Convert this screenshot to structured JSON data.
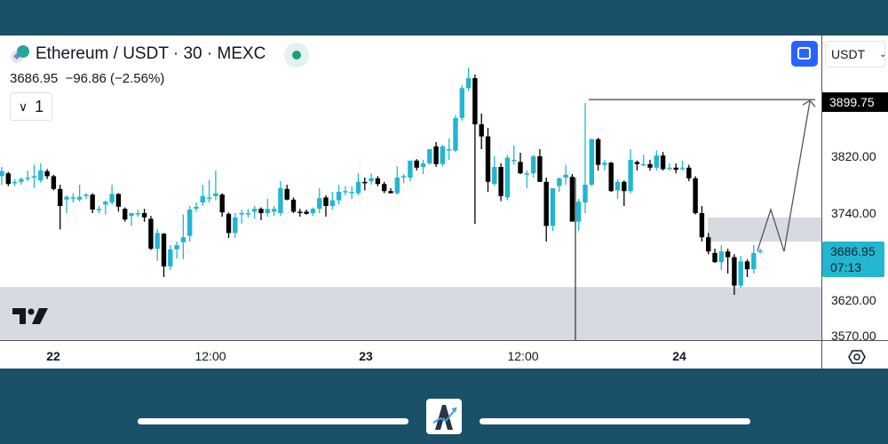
{
  "header": {
    "symbol_title": "Ethereum / USDT · 30 · MEXC",
    "last_price": "3686.95",
    "change": "−96.86 (−2.56%)",
    "collapse_count": "1",
    "market_status": "open"
  },
  "toolbar": {
    "currency": "USDT",
    "fullscreen_icon": "fullscreen-icon",
    "settings_icon": "gear-icon"
  },
  "price_axis": {
    "labels": [
      "3820.00",
      "3740.00",
      "3620.00",
      "3570.00"
    ],
    "target_tag": "3899.75",
    "current_tag": {
      "price": "3686.95",
      "countdown": "07:13"
    }
  },
  "time_axis": {
    "labels": [
      {
        "text": "22",
        "bold": true
      },
      {
        "text": "12:00",
        "bold": false
      },
      {
        "text": "23",
        "bold": true
      },
      {
        "text": "12:00",
        "bold": false
      },
      {
        "text": "24",
        "bold": true
      }
    ]
  },
  "colors": {
    "up": "#22b6d0",
    "down": "#000000",
    "zone": "#d1d4dc",
    "accent": "#2962ff",
    "background": "#1b5069"
  },
  "chart_data": {
    "type": "candlestick",
    "interval": "30",
    "ylim": [
      3560,
      3960
    ],
    "candles_ohlc": [
      [
        3792,
        3805,
        3780,
        3799
      ],
      [
        3796,
        3798,
        3778,
        3781
      ],
      [
        3782,
        3788,
        3778,
        3784
      ],
      [
        3784,
        3790,
        3780,
        3788
      ],
      [
        3789,
        3800,
        3785,
        3790
      ],
      [
        3790,
        3808,
        3775,
        3792
      ],
      [
        3786,
        3810,
        3783,
        3800
      ],
      [
        3799,
        3802,
        3788,
        3792
      ],
      [
        3792,
        3794,
        3772,
        3774
      ],
      [
        3774,
        3780,
        3717,
        3750
      ],
      [
        3759,
        3765,
        3740,
        3763
      ],
      [
        3761,
        3768,
        3755,
        3762
      ],
      [
        3759,
        3780,
        3756,
        3763
      ],
      [
        3765,
        3768,
        3760,
        3766
      ],
      [
        3766,
        3768,
        3740,
        3745
      ],
      [
        3745,
        3750,
        3740,
        3746
      ],
      [
        3752,
        3758,
        3738,
        3756
      ],
      [
        3755,
        3780,
        3752,
        3767
      ],
      [
        3767,
        3768,
        3742,
        3749
      ],
      [
        3746,
        3748,
        3728,
        3731
      ],
      [
        3736,
        3740,
        3722,
        3740
      ],
      [
        3740,
        3745,
        3735,
        3740
      ],
      [
        3740,
        3746,
        3728,
        3734
      ],
      [
        3732,
        3736,
        3688,
        3690
      ],
      [
        3690,
        3718,
        3673,
        3712
      ],
      [
        3711,
        3712,
        3650,
        3665
      ],
      [
        3665,
        3695,
        3660,
        3689
      ],
      [
        3689,
        3700,
        3676,
        3695
      ],
      [
        3699,
        3738,
        3675,
        3706
      ],
      [
        3708,
        3750,
        3700,
        3745
      ],
      [
        3746,
        3755,
        3742,
        3749
      ],
      [
        3755,
        3780,
        3750,
        3764
      ],
      [
        3762,
        3787,
        3755,
        3762
      ],
      [
        3764,
        3800,
        3758,
        3768
      ],
      [
        3766,
        3768,
        3735,
        3741
      ],
      [
        3739,
        3741,
        3705,
        3712
      ],
      [
        3712,
        3740,
        3705,
        3734
      ],
      [
        3738,
        3745,
        3725,
        3740
      ],
      [
        3740,
        3746,
        3734,
        3740
      ],
      [
        3742,
        3750,
        3732,
        3746
      ],
      [
        3746,
        3748,
        3730,
        3740
      ],
      [
        3740,
        3760,
        3735,
        3746
      ],
      [
        3742,
        3750,
        3736,
        3746
      ],
      [
        3740,
        3785,
        3736,
        3775
      ],
      [
        3774,
        3780,
        3758,
        3759
      ],
      [
        3759,
        3762,
        3740,
        3742
      ],
      [
        3742,
        3746,
        3735,
        3741
      ],
      [
        3742,
        3745,
        3738,
        3739
      ],
      [
        3740,
        3748,
        3736,
        3746
      ],
      [
        3746,
        3775,
        3740,
        3761
      ],
      [
        3762,
        3765,
        3735,
        3750
      ],
      [
        3750,
        3770,
        3745,
        3758
      ],
      [
        3758,
        3780,
        3752,
        3770
      ],
      [
        3770,
        3778,
        3765,
        3771
      ],
      [
        3769,
        3778,
        3760,
        3770
      ],
      [
        3768,
        3796,
        3765,
        3784
      ],
      [
        3784,
        3790,
        3772,
        3782
      ],
      [
        3785,
        3796,
        3780,
        3789
      ],
      [
        3789,
        3792,
        3778,
        3781
      ],
      [
        3781,
        3784,
        3768,
        3771
      ],
      [
        3771,
        3775,
        3768,
        3768
      ],
      [
        3768,
        3806,
        3766,
        3790
      ],
      [
        3790,
        3795,
        3782,
        3792
      ],
      [
        3790,
        3812,
        3785,
        3814
      ],
      [
        3814,
        3816,
        3800,
        3804
      ],
      [
        3805,
        3815,
        3795,
        3810
      ],
      [
        3810,
        3830,
        3808,
        3830
      ],
      [
        3834,
        3840,
        3805,
        3809
      ],
      [
        3809,
        3836,
        3806,
        3834
      ],
      [
        3830,
        3845,
        3815,
        3830
      ],
      [
        3828,
        3878,
        3826,
        3874
      ],
      [
        3874,
        3920,
        3870,
        3916
      ],
      [
        3916,
        3945,
        3912,
        3930
      ],
      [
        3930,
        3935,
        3725,
        3865
      ],
      [
        3865,
        3880,
        3830,
        3848
      ],
      [
        3848,
        3860,
        3770,
        3784
      ],
      [
        3781,
        3820,
        3778,
        3805
      ],
      [
        3805,
        3810,
        3757,
        3764
      ],
      [
        3762,
        3822,
        3758,
        3818
      ],
      [
        3815,
        3835,
        3808,
        3815
      ],
      [
        3812,
        3825,
        3795,
        3796
      ],
      [
        3796,
        3800,
        3775,
        3796
      ],
      [
        3796,
        3822,
        3790,
        3820
      ],
      [
        3820,
        3830,
        3784,
        3784
      ],
      [
        3784,
        3790,
        3700,
        3722
      ],
      [
        3722,
        3770,
        3715,
        3775
      ],
      [
        3778,
        3790,
        3770,
        3789
      ],
      [
        3790,
        3808,
        3780,
        3794
      ],
      [
        3791,
        3795,
        3728,
        3728
      ],
      [
        3728,
        3760,
        3715,
        3756
      ],
      [
        3755,
        3895,
        3740,
        3780
      ],
      [
        3780,
        3845,
        3778,
        3844
      ],
      [
        3844,
        3846,
        3800,
        3808
      ],
      [
        3808,
        3815,
        3800,
        3811
      ],
      [
        3811,
        3812,
        3770,
        3771
      ],
      [
        3772,
        3788,
        3760,
        3784
      ],
      [
        3784,
        3786,
        3750,
        3771
      ],
      [
        3771,
        3830,
        3768,
        3815
      ],
      [
        3812,
        3814,
        3800,
        3809
      ],
      [
        3809,
        3822,
        3806,
        3809
      ],
      [
        3809,
        3815,
        3800,
        3804
      ],
      [
        3804,
        3828,
        3800,
        3821
      ],
      [
        3821,
        3826,
        3800,
        3802
      ],
      [
        3804,
        3810,
        3800,
        3804
      ],
      [
        3804,
        3810,
        3796,
        3801
      ],
      [
        3804,
        3814,
        3800,
        3804
      ],
      [
        3804,
        3808,
        3785,
        3789
      ],
      [
        3789,
        3792,
        3738,
        3740
      ],
      [
        3740,
        3750,
        3700,
        3706
      ],
      [
        3706,
        3712,
        3682,
        3686
      ],
      [
        3684,
        3690,
        3670,
        3671
      ],
      [
        3671,
        3695,
        3660,
        3686
      ],
      [
        3686,
        3690,
        3655,
        3678
      ],
      [
        3678,
        3682,
        3625,
        3638
      ],
      [
        3638,
        3680,
        3635,
        3672
      ],
      [
        3672,
        3675,
        3650,
        3661
      ],
      [
        3661,
        3695,
        3655,
        3684
      ],
      [
        3685,
        3690,
        3683,
        3687
      ]
    ],
    "zones": [
      {
        "top": 3734,
        "bottom": 3700
      },
      {
        "top": 3636,
        "bottom": 3560
      }
    ],
    "target_level": 3899.75
  }
}
